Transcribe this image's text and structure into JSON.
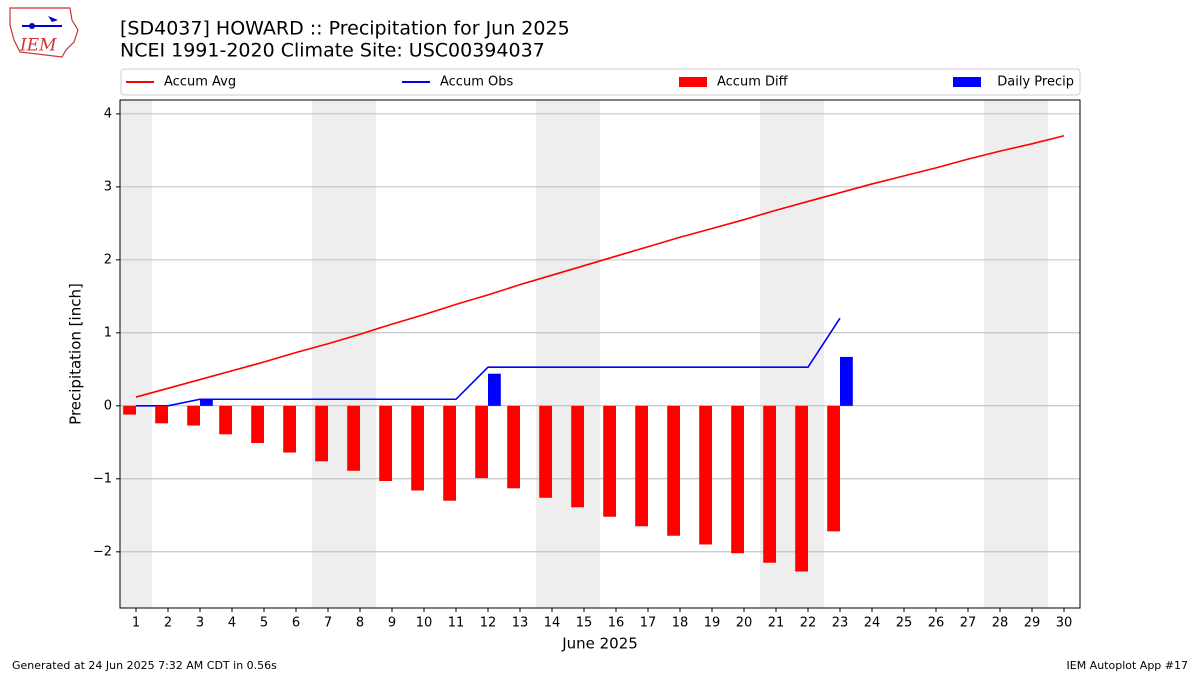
{
  "chart_data": {
    "type": "combo",
    "title": "[SD4037] HOWARD :: Precipitation for Jun 2025",
    "subtitle": "NCEI 1991-2020 Climate Site: USC00394037",
    "ylabel": "Precipitation [inch]",
    "xlabel": "June 2025",
    "logo_text": "IEM",
    "footer_left": "Generated at 24 Jun 2025 7:32 AM CDT in 0.56s",
    "footer_right": "IEM Autoplot App #17",
    "x": [
      1,
      2,
      3,
      4,
      5,
      6,
      7,
      8,
      9,
      10,
      11,
      12,
      13,
      14,
      15,
      16,
      17,
      18,
      19,
      20,
      21,
      22,
      23,
      24,
      25,
      26,
      27,
      28,
      29,
      30
    ],
    "xlim": [
      0.5,
      30.5
    ],
    "xticks": [
      1,
      2,
      3,
      4,
      5,
      6,
      7,
      8,
      9,
      10,
      11,
      12,
      13,
      14,
      15,
      16,
      17,
      18,
      19,
      20,
      21,
      22,
      23,
      24,
      25,
      26,
      27,
      28,
      29,
      30
    ],
    "ylim": [
      -2.77,
      4.19
    ],
    "yticks": [
      {
        "value": -2,
        "label": "−2"
      },
      {
        "value": -1,
        "label": "−1"
      },
      0,
      1,
      2,
      3,
      4
    ],
    "grid": true,
    "shaded_spans": [
      [
        0.5,
        1.5
      ],
      [
        6.5,
        8.5
      ],
      [
        13.5,
        15.5
      ],
      [
        20.5,
        22.5
      ],
      [
        27.5,
        29.5
      ]
    ],
    "shade_color": "#eeeeee",
    "series": [
      {
        "name": "Accum Avg",
        "kind": "line",
        "color": "#ff0000",
        "values": [
          0.12,
          0.24,
          0.36,
          0.48,
          0.6,
          0.73,
          0.85,
          0.98,
          1.12,
          1.25,
          1.39,
          1.52,
          1.66,
          1.79,
          1.92,
          2.05,
          2.18,
          2.31,
          2.43,
          2.55,
          2.68,
          2.8,
          2.92,
          3.04,
          3.15,
          3.26,
          3.38,
          3.49,
          3.59,
          3.7
        ]
      },
      {
        "name": "Accum Obs",
        "kind": "line",
        "color": "#0000ff",
        "values": [
          0,
          0,
          0.09,
          0.09,
          0.09,
          0.09,
          0.09,
          0.09,
          0.09,
          0.09,
          0.09,
          0.53,
          0.53,
          0.53,
          0.53,
          0.53,
          0.53,
          0.53,
          0.53,
          0.53,
          0.53,
          0.53,
          1.2,
          null,
          null,
          null,
          null,
          null,
          null,
          null
        ]
      },
      {
        "name": "Accum Diff",
        "kind": "bar",
        "offset": -0.4,
        "color": "#ff0000",
        "values": [
          -0.12,
          -0.24,
          -0.27,
          -0.39,
          -0.51,
          -0.64,
          -0.76,
          -0.89,
          -1.03,
          -1.16,
          -1.3,
          -0.99,
          -1.13,
          -1.26,
          -1.39,
          -1.52,
          -1.65,
          -1.78,
          -1.9,
          -2.02,
          -2.15,
          -2.27,
          -1.72,
          null,
          null,
          null,
          null,
          null,
          null,
          null
        ]
      },
      {
        "name": "Daily Precip",
        "kind": "bar",
        "offset": 0,
        "color": "#0000ff",
        "values": [
          0,
          0,
          0.09,
          0,
          0,
          0,
          0,
          0,
          0,
          0,
          0,
          0.44,
          0,
          0,
          0,
          0,
          0,
          0,
          0,
          0,
          0,
          0,
          0.67,
          null,
          null,
          null,
          null,
          null,
          null,
          null
        ]
      }
    ]
  }
}
